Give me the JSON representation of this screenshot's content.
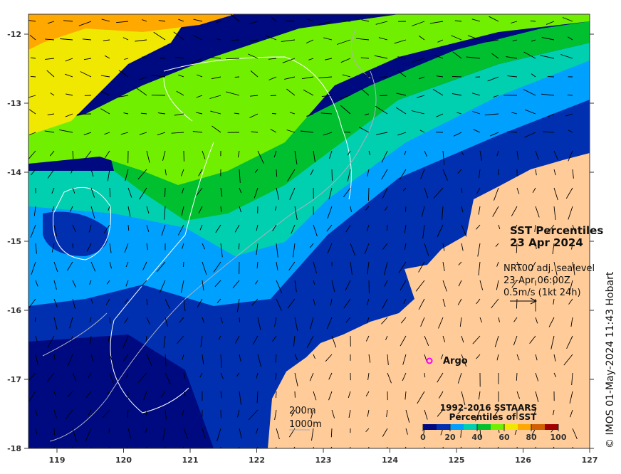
{
  "title": {
    "line1": "SST Percentiles",
    "line2": "23 Apr 2024"
  },
  "currents": {
    "line1": "NRT00 adj. sealevel",
    "line2": "23-Apr 06:00Z",
    "line3": "0.5m/s (1kt 24h)"
  },
  "isobaths": {
    "shallow": "200m",
    "deep": "1000m"
  },
  "argo": {
    "label": "Argo",
    "color": "#ff00ff"
  },
  "copyright": "© IMOS 01-May-2024 11:43 Hobart",
  "legend": {
    "title1": "1992-2016 SSTAARS",
    "title2": "Percentiles of SST",
    "colors": [
      "#000a80",
      "#0030b0",
      "#00a0ff",
      "#00d0b0",
      "#00c030",
      "#70f000",
      "#f0e800",
      "#ffa800",
      "#d06000",
      "#a00000"
    ],
    "ticks": [
      "0",
      "20",
      "40",
      "60",
      "80",
      "100"
    ]
  },
  "axes": {
    "x_ticks": [
      "119",
      "120",
      "121",
      "122",
      "123",
      "124",
      "125",
      "126",
      "127"
    ],
    "y_ticks": [
      "-12",
      "-13",
      "-14",
      "-15",
      "-16",
      "-17",
      "-18"
    ]
  },
  "land_color": "#ffcc99"
}
